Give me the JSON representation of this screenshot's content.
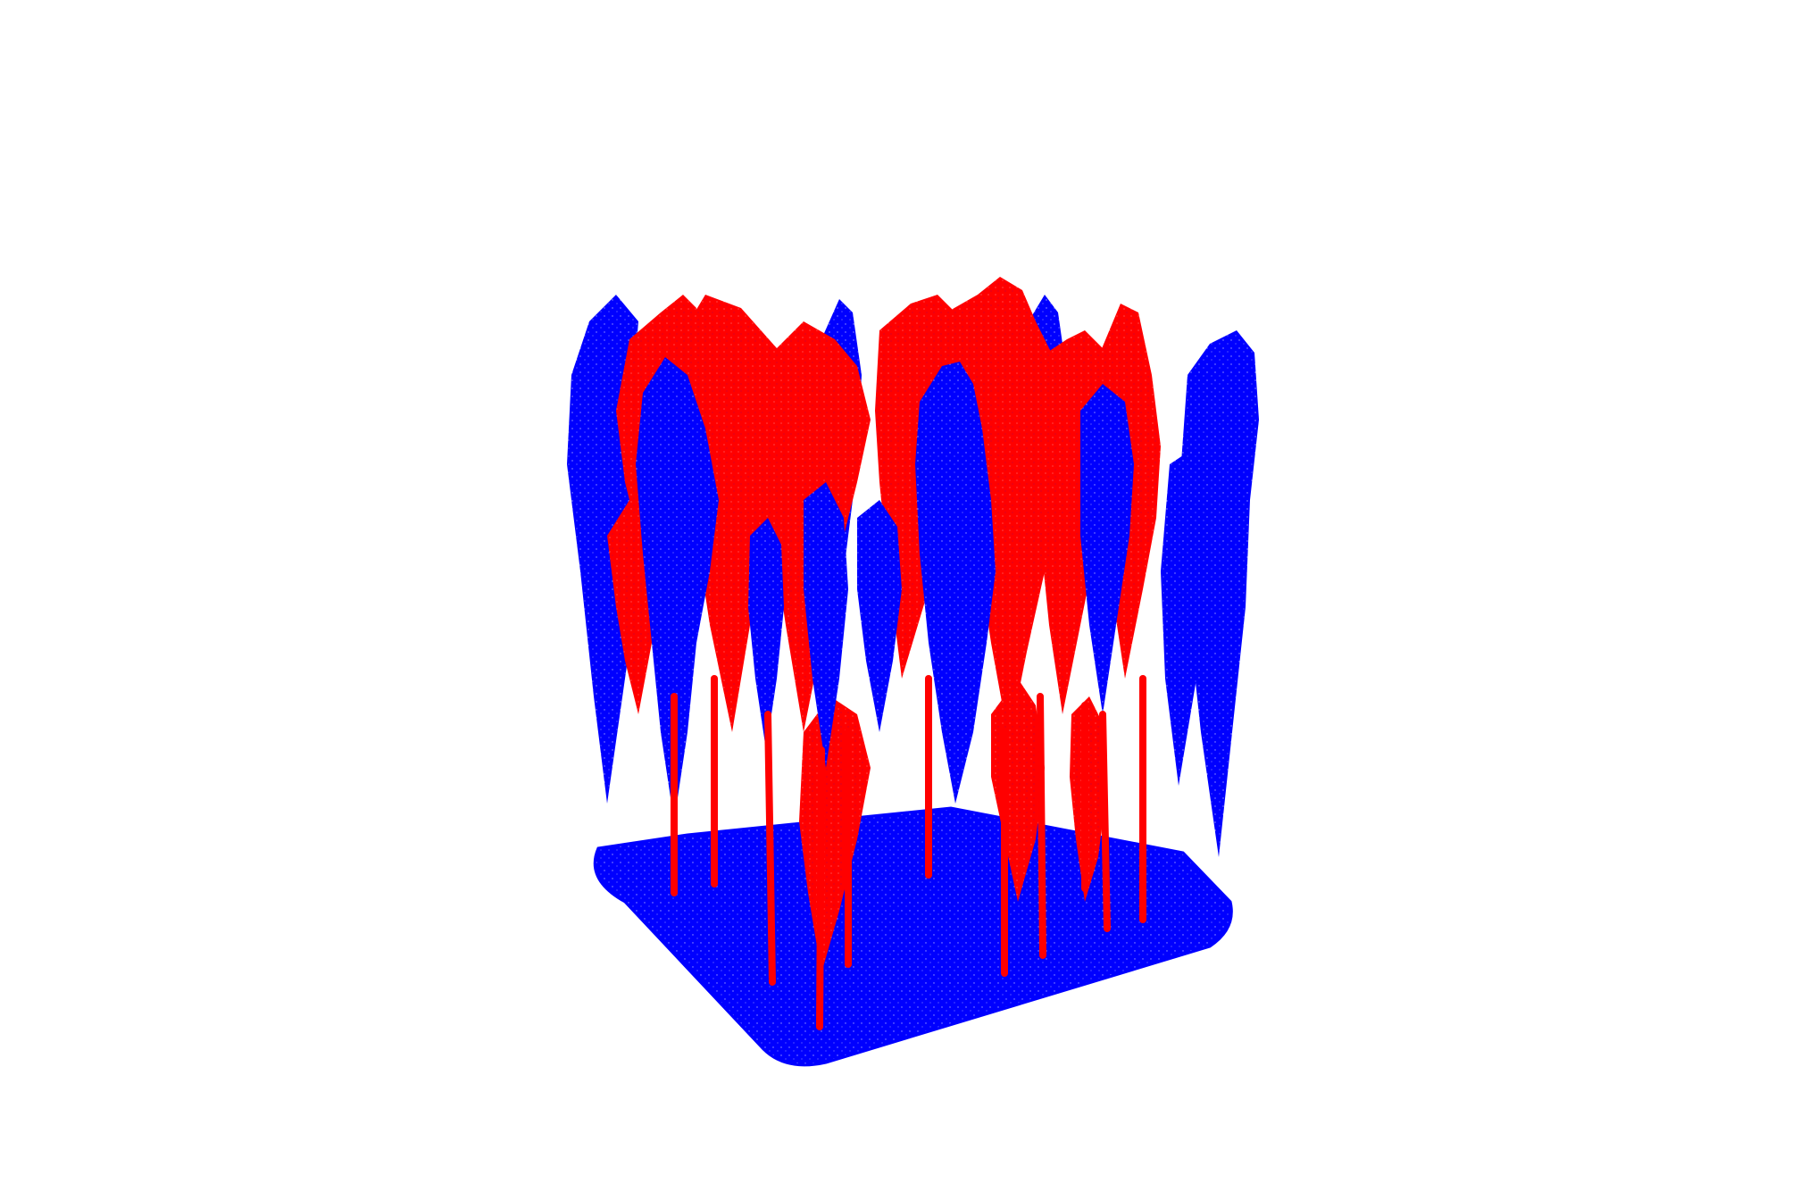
{
  "scene": {
    "kind": "point-cloud-render",
    "subject": "forest-plot",
    "background_color": "#ffffff",
    "point_classes": [
      {
        "name": "ground-and-unlabeled",
        "color": "#0000ff"
      },
      {
        "name": "highlighted-trees",
        "color": "#ff0000"
      }
    ],
    "tree_count_left_cluster": 9,
    "tree_count_right_cluster": 8
  }
}
